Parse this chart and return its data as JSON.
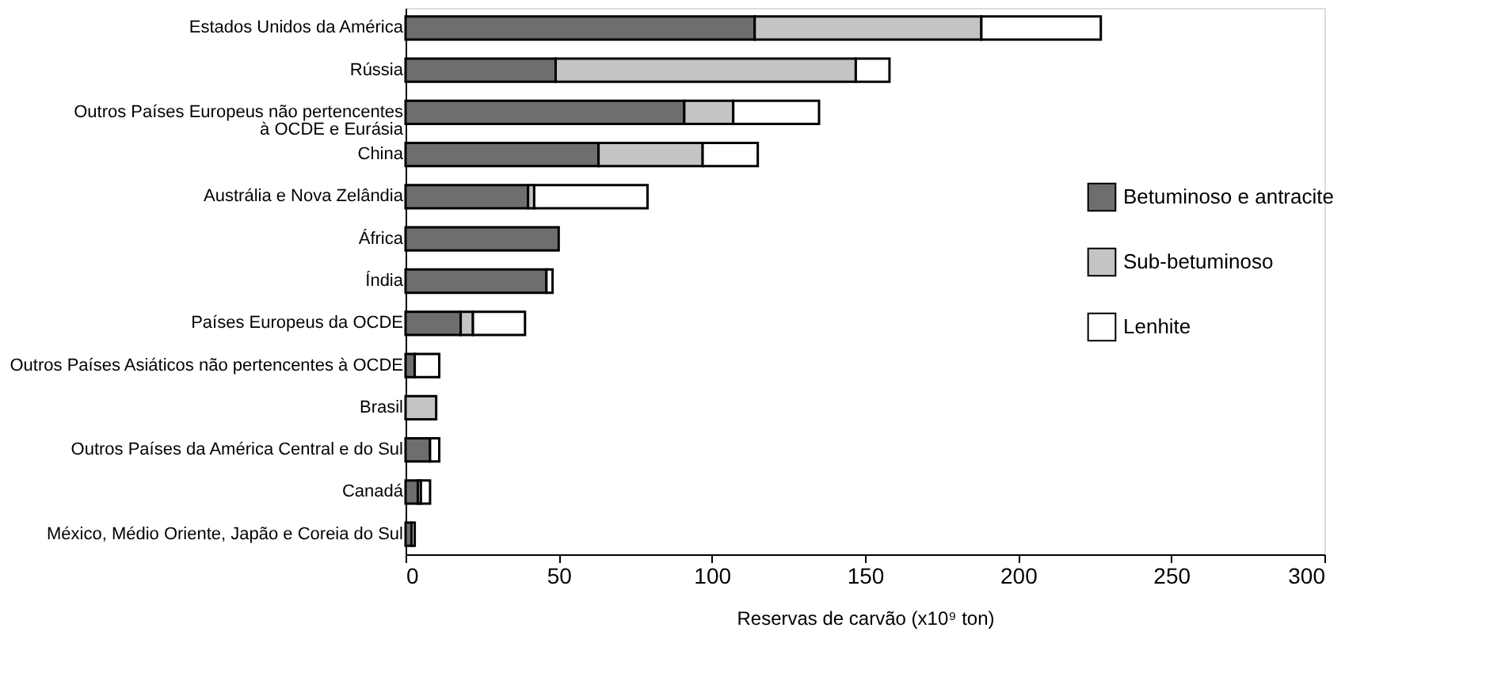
{
  "chart_data": {
    "type": "bar",
    "orientation": "horizontal",
    "stacked": true,
    "xlabel": "Reservas de carvão (x10⁹ ton)",
    "categories": [
      "Estados Unidos da América",
      "Rússia",
      "Outros Países Europeus não pertencentes\nà OCDE e Eurásia",
      "China",
      "Austrália e Nova Zelândia",
      "África",
      "Índia",
      "Países Europeus da OCDE",
      "Outros Países Asiáticos não pertencentes à OCDE",
      "Brasil",
      "Outros Países da América Central e do Sul",
      "Canadá",
      "México, Médio Oriente, Japão e Coreia do Sul"
    ],
    "series": [
      {
        "name": "Betuminoso e antracite",
        "color": "#6e6e6e",
        "values": [
          114,
          49,
          91,
          63,
          40,
          50,
          46,
          18,
          3,
          null,
          8,
          4,
          2
        ]
      },
      {
        "name": "Sub-betuminoso",
        "color": "#c4c4c4",
        "values": [
          74,
          98,
          16,
          34,
          2,
          null,
          null,
          4,
          null,
          10,
          null,
          1,
          null
        ]
      },
      {
        "name": "Lenhite",
        "color": "#ffffff",
        "values": [
          39,
          11,
          28,
          18,
          37,
          null,
          2,
          17,
          8,
          null,
          3,
          3,
          1
        ]
      }
    ],
    "xlim": [
      0,
      300
    ],
    "xticks": [
      0,
      50,
      100,
      150,
      200,
      250,
      300
    ],
    "grid": false,
    "legend": "right"
  }
}
